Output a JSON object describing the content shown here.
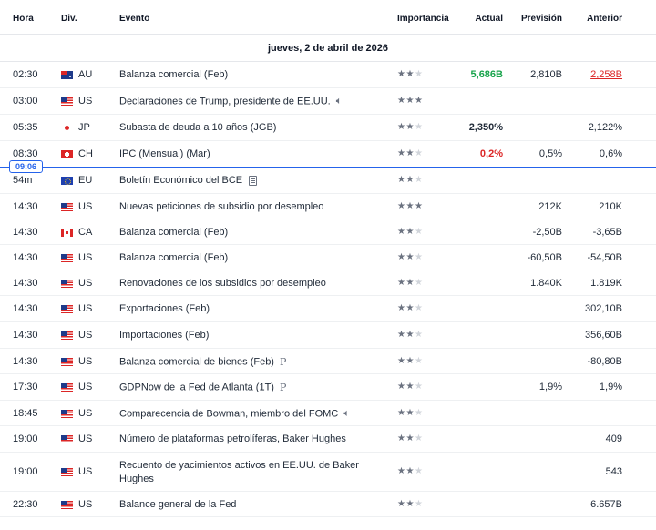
{
  "header": {
    "time": "Hora",
    "currency": "Div.",
    "event": "Evento",
    "importance": "Importancia",
    "actual": "Actual",
    "forecast": "Previsión",
    "previous": "Anterior"
  },
  "date_label": "jueves, 2 de abril de 2026",
  "now_marker": "09:06",
  "rows": [
    {
      "time": "02:30",
      "flag": "au",
      "cur": "AU",
      "event": "Balanza comercial (Feb)",
      "stars": 2,
      "actual": "5,686B",
      "actual_color": "green",
      "forecast": "2,810B",
      "previous": "2,258B",
      "previous_style": "underline-red"
    },
    {
      "time": "03:00",
      "flag": "us",
      "cur": "US",
      "event": "Declaraciones de Trump, presidente de EE.UU.",
      "icon": "speaker-icon",
      "stars": 3,
      "actual": "",
      "forecast": "",
      "previous": ""
    },
    {
      "time": "05:35",
      "flag": "jp",
      "cur": "JP",
      "event": "Subasta de deuda a 10 años (JGB)",
      "stars": 2,
      "actual": "2,350%",
      "actual_color": "dark",
      "forecast": "",
      "previous": "2,122%"
    },
    {
      "time": "08:30",
      "flag": "ch",
      "cur": "CH",
      "event": "IPC (Mensual) (Mar)",
      "stars": 2,
      "actual": "0,2%",
      "actual_color": "red",
      "forecast": "0,5%",
      "previous": "0,6%"
    },
    {
      "time": "54m",
      "flag": "eu",
      "cur": "EU",
      "event": "Boletín Económico del BCE",
      "icon": "document-icon",
      "stars": 2,
      "actual": "",
      "forecast": "",
      "previous": ""
    },
    {
      "time": "14:30",
      "flag": "us",
      "cur": "US",
      "event": "Nuevas peticiones de subsidio por desempleo",
      "stars": 3,
      "actual": "",
      "forecast": "212K",
      "previous": "210K"
    },
    {
      "time": "14:30",
      "flag": "ca",
      "cur": "CA",
      "event": "Balanza comercial (Feb)",
      "stars": 2,
      "actual": "",
      "forecast": "-2,50B",
      "previous": "-3,65B"
    },
    {
      "time": "14:30",
      "flag": "us",
      "cur": "US",
      "event": "Balanza comercial (Feb)",
      "stars": 2,
      "actual": "",
      "forecast": "-60,50B",
      "previous": "-54,50B"
    },
    {
      "time": "14:30",
      "flag": "us",
      "cur": "US",
      "event": "Renovaciones de los subsidios por desempleo",
      "stars": 2,
      "actual": "",
      "forecast": "1.840K",
      "previous": "1.819K"
    },
    {
      "time": "14:30",
      "flag": "us",
      "cur": "US",
      "event": "Exportaciones (Feb)",
      "stars": 2,
      "actual": "",
      "forecast": "",
      "previous": "302,10B"
    },
    {
      "time": "14:30",
      "flag": "us",
      "cur": "US",
      "event": "Importaciones (Feb)",
      "stars": 2,
      "actual": "",
      "forecast": "",
      "previous": "356,60B"
    },
    {
      "time": "14:30",
      "flag": "us",
      "cur": "US",
      "event": "Balanza comercial de bienes (Feb)",
      "icon_text": "P",
      "stars": 2,
      "actual": "",
      "forecast": "",
      "previous": "-80,80B"
    },
    {
      "time": "17:30",
      "flag": "us",
      "cur": "US",
      "event": "GDPNow de la Fed de Atlanta (1T)",
      "icon_text": "P",
      "stars": 2,
      "actual": "",
      "forecast": "1,9%",
      "previous": "1,9%"
    },
    {
      "time": "18:45",
      "flag": "us",
      "cur": "US",
      "event": "Comparecencia de Bowman, miembro del FOMC",
      "icon": "speaker-icon",
      "stars": 2,
      "actual": "",
      "forecast": "",
      "previous": ""
    },
    {
      "time": "19:00",
      "flag": "us",
      "cur": "US",
      "event": "Número de plataformas petrolíferas, Baker Hughes",
      "stars": 2,
      "actual": "",
      "forecast": "",
      "previous": "409"
    },
    {
      "time": "19:00",
      "flag": "us",
      "cur": "US",
      "event": "Recuento de yacimientos activos en EE.UU. de Baker Hughes",
      "stars": 2,
      "actual": "",
      "forecast": "",
      "previous": "543"
    },
    {
      "time": "22:30",
      "flag": "us",
      "cur": "US",
      "event": "Balance general de la Fed",
      "stars": 2,
      "actual": "",
      "forecast": "",
      "previous": "6.657B"
    }
  ]
}
